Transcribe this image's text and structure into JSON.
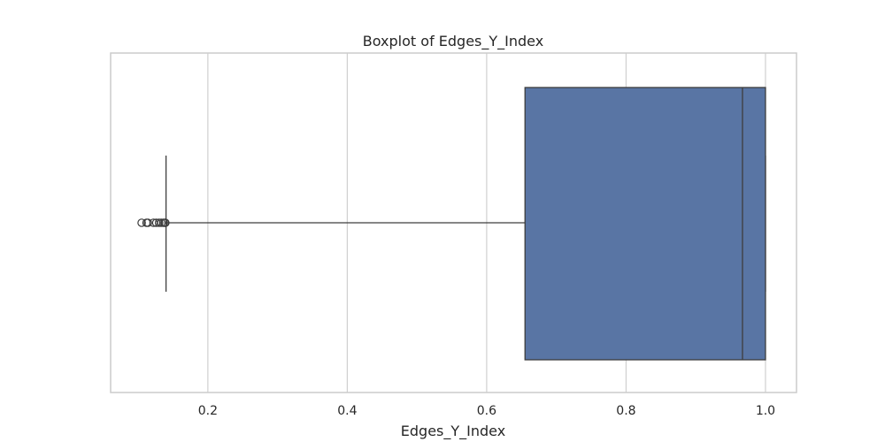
{
  "chart_data": {
    "type": "boxplot",
    "title": "Boxplot of Edges_Y_Index",
    "xlabel": "Edges_Y_Index",
    "ylabel": "",
    "xlim": [
      0.0605,
      1.0445
    ],
    "xticks": [
      0.2,
      0.4,
      0.6,
      0.8,
      1.0
    ],
    "xtick_labels": [
      "0.2",
      "0.4",
      "0.6",
      "0.8",
      "1.0"
    ],
    "grid": true,
    "box": {
      "whisker_low": 0.14,
      "q1": 0.655,
      "median": 0.967,
      "q3": 1.0,
      "whisker_high": 1.0
    },
    "outliers": [
      0.105,
      0.112,
      0.114,
      0.122,
      0.126,
      0.13,
      0.133,
      0.136,
      0.138,
      0.139
    ],
    "colors": {
      "box_fill": "#5975a4",
      "line": "#3d3d3d",
      "grid": "#d0d0d0",
      "frame": "#cccccc",
      "text": "#262626"
    }
  }
}
